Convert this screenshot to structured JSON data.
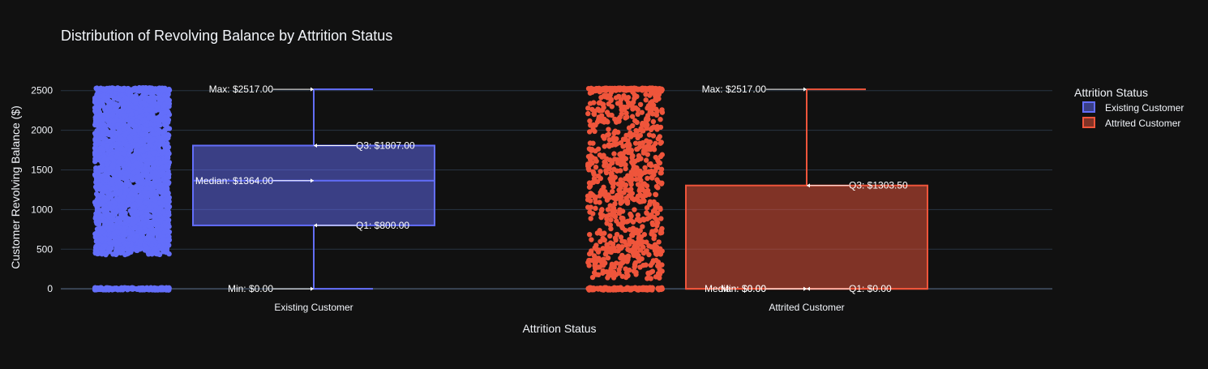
{
  "chart_data": {
    "type": "box",
    "title": "Distribution of Revolving Balance by Attrition Status",
    "xlabel": "Attrition Status",
    "ylabel": "Customer Revolving Balance ($)",
    "ylim": [
      -60,
      2620
    ],
    "yticks": [
      0,
      500,
      1000,
      1500,
      2000,
      2500
    ],
    "grid": true,
    "legend_title": "Attrition Status",
    "legend_position": "top-right",
    "categories": [
      "Existing Customer",
      "Attrited Customer"
    ],
    "series": [
      {
        "name": "Existing Customer",
        "color": "#636efa",
        "min": 0,
        "q1": 800,
        "median": 1364,
        "q3": 1807,
        "max": 2517,
        "labels": {
          "max": "Max: $2517.00",
          "q3": "Q3: $1807.00",
          "median": "Median: $1364.00",
          "q1": "Q1: $800.00",
          "min": "Min: $0.00"
        },
        "points": {
          "dense_range": [
            500,
            2517
          ],
          "sparse_low": 430,
          "zero_band": true
        }
      },
      {
        "name": "Attrited Customer",
        "color": "#ef553b",
        "min": 0,
        "q1": 0,
        "median": 0,
        "q3": 1303.5,
        "max": 2517,
        "labels": {
          "max": "Max: $2517.00",
          "q3": "Q3: $1303.50",
          "median": "Median: $0.00",
          "q1": "Q1: $0.00",
          "min": "Min: $0.00"
        },
        "points": {
          "dense_range": [
            130,
            2517
          ],
          "zero_band": true,
          "top_band": true
        }
      }
    ]
  }
}
